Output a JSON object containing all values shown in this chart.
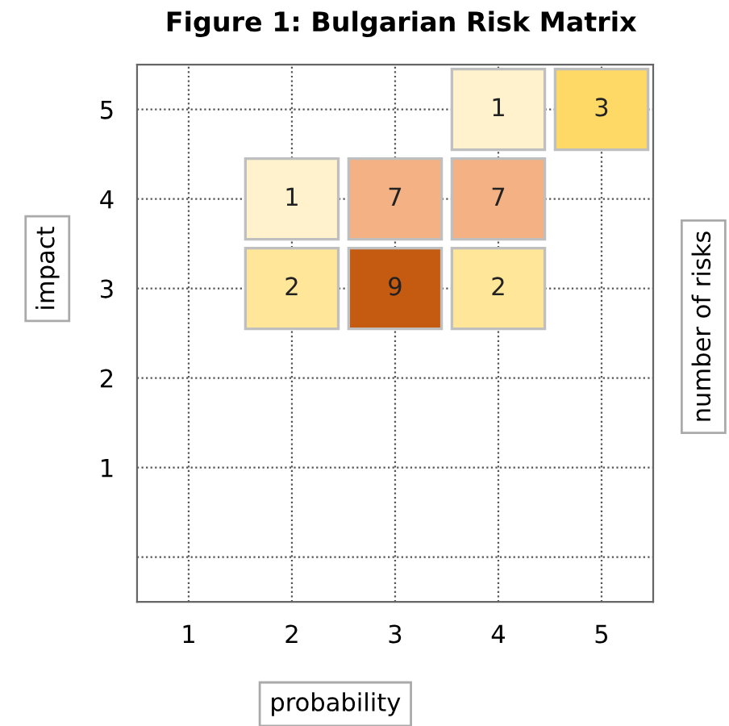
{
  "chart_data": {
    "type": "heatmap",
    "title": "Figure 1: Bulgarian Risk Matrix",
    "xlabel": "probability",
    "ylabel": "impact",
    "clabel": "number of risks",
    "categories": [
      "1",
      "2",
      "3",
      "4",
      "5"
    ],
    "y_categories": [
      "5",
      "4",
      "3",
      "2",
      "1"
    ],
    "cells": [
      [
        null,
        null,
        null,
        1,
        3
      ],
      [
        null,
        1,
        7,
        7,
        null
      ],
      [
        null,
        2,
        9,
        2,
        null
      ],
      [
        null,
        null,
        null,
        null,
        null
      ],
      [
        null,
        null,
        null,
        null,
        null
      ]
    ],
    "colors": [
      [
        null,
        null,
        null,
        "#fff2cc",
        "#ffd966"
      ],
      [
        null,
        "#fff2cc",
        "#f4b183",
        "#f4b183",
        null
      ],
      [
        null,
        "#ffe699",
        "#c55a11",
        "#ffe699",
        null
      ],
      [
        null,
        null,
        null,
        null,
        null
      ],
      [
        null,
        null,
        null,
        null,
        null
      ]
    ],
    "grid": true,
    "data_labels": true
  }
}
